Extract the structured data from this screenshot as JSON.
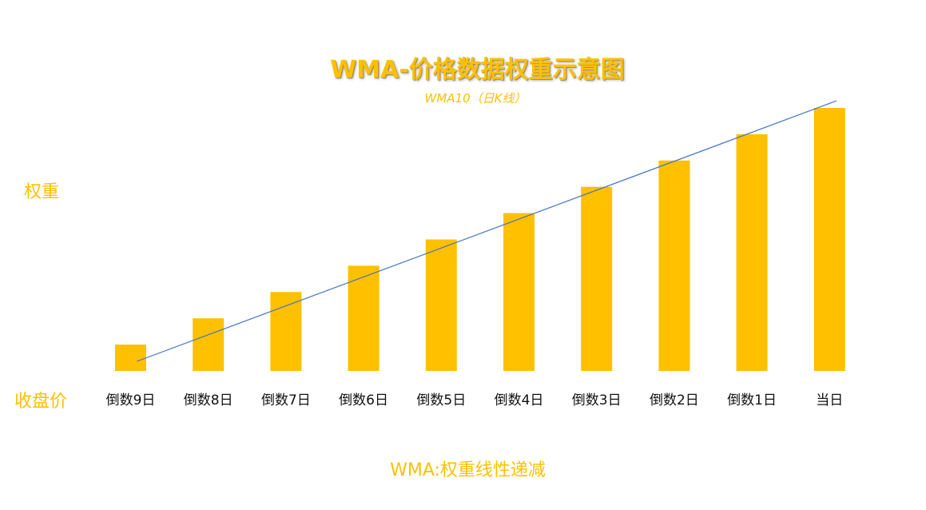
{
  "chart_data": {
    "type": "bar",
    "title": "WMA-价格数据权重示意图",
    "subtitle": "WMA10（日K线）",
    "ylabel": "权重",
    "xlabel": "收盘价",
    "categories": [
      "倒数9日",
      "倒数8日",
      "倒数7日",
      "倒数6日",
      "倒数5日",
      "倒数4日",
      "倒数3日",
      "倒数2日",
      "倒数1日",
      "当日"
    ],
    "values": [
      1,
      2,
      3,
      4,
      5,
      6,
      7,
      8,
      9,
      10
    ],
    "trend_line": true,
    "grid": false,
    "legend": "none"
  },
  "note": "WMA:权重线性递减",
  "colors": {
    "bar": "#FFC000",
    "trend_line": "#4472C4",
    "text_accent": "#FFC000",
    "tick_text": "#111111"
  }
}
